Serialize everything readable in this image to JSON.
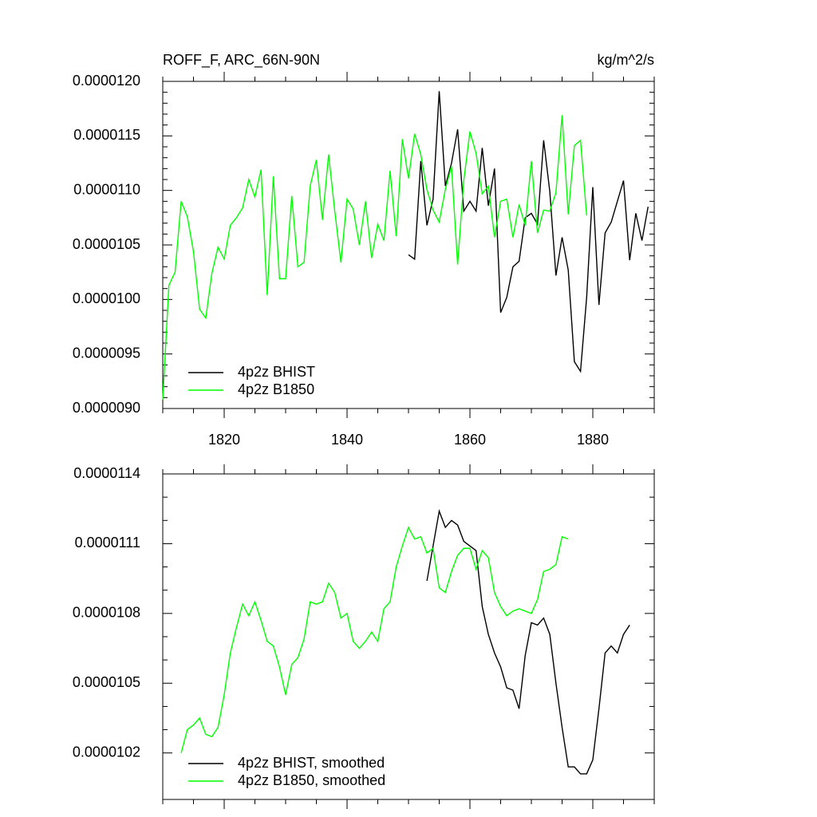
{
  "chart_data": [
    {
      "type": "line",
      "title": "ROFF_F, ARC_66N-90N",
      "units": "kg/m^2/s",
      "xlim": [
        1810,
        1890
      ],
      "xticks": [
        1820,
        1840,
        1860,
        1880
      ],
      "ylim": [
        9e-06,
        1.2e-05
      ],
      "yticks": [
        {
          "value": 1.2e-05,
          "label": "0.0000120"
        },
        {
          "value": 1.15e-05,
          "label": "0.0000115"
        },
        {
          "value": 1.1e-05,
          "label": "0.0000110"
        },
        {
          "value": 1.05e-05,
          "label": "0.0000105"
        },
        {
          "value": 1e-05,
          "label": "0.0000100"
        },
        {
          "value": 9.5e-06,
          "label": "0.0000095"
        },
        {
          "value": 9e-06,
          "label": "0.0000090"
        }
      ],
      "legend": "lower left",
      "series": [
        {
          "name": "4p2z BHIST",
          "color": "#000000",
          "x": [
            1850,
            1851,
            1852,
            1853,
            1854,
            1855,
            1856,
            1857,
            1858,
            1859,
            1860,
            1861,
            1862,
            1863,
            1864,
            1865,
            1866,
            1867,
            1868,
            1869,
            1870,
            1871,
            1872,
            1873,
            1874,
            1875,
            1876,
            1877,
            1878,
            1879,
            1880,
            1881,
            1882,
            1883,
            1884,
            1885,
            1886,
            1887,
            1888,
            1889
          ],
          "values": [
            1.041e-05,
            1.037e-05,
            1.127e-05,
            1.068e-05,
            1.092e-05,
            1.191e-05,
            1.104e-05,
            1.125e-05,
            1.156e-05,
            1.081e-05,
            1.09e-05,
            1.081e-05,
            1.139e-05,
            1.086e-05,
            1.12e-05,
            9.88e-06,
            1.002e-05,
            1.03e-05,
            1.035e-05,
            1.075e-05,
            1.079e-05,
            1.069e-05,
            1.146e-05,
            1.099e-05,
            1.022e-05,
            1.057e-05,
            1.027e-05,
            9.43e-06,
            9.34e-06,
            1.002e-05,
            1.103e-05,
            9.95e-06,
            1.061e-05,
            1.071e-05,
            1.09e-05,
            1.109e-05,
            1.036e-05,
            1.079e-05,
            1.054e-05,
            1.085e-05
          ]
        },
        {
          "name": "4p2z B1850",
          "color": "#00ff00",
          "x": [
            1810,
            1811,
            1812,
            1813,
            1814,
            1815,
            1816,
            1817,
            1818,
            1819,
            1820,
            1821,
            1822,
            1823,
            1824,
            1825,
            1826,
            1827,
            1828,
            1829,
            1830,
            1831,
            1832,
            1833,
            1834,
            1835,
            1836,
            1837,
            1838,
            1839,
            1840,
            1841,
            1842,
            1843,
            1844,
            1845,
            1846,
            1847,
            1848,
            1849,
            1850,
            1851,
            1852,
            1853,
            1854,
            1855,
            1856,
            1857,
            1858,
            1859,
            1860,
            1861,
            1862,
            1863,
            1864,
            1865,
            1866,
            1867,
            1868,
            1869,
            1870,
            1871,
            1872,
            1873,
            1874,
            1875,
            1876,
            1877,
            1878,
            1879
          ],
          "values": [
            9.08e-06,
            1.013e-05,
            1.025e-05,
            1.09e-05,
            1.076e-05,
            1.044e-05,
            9.91e-06,
            9.83e-06,
            1.024e-05,
            1.048e-05,
            1.037e-05,
            1.068e-05,
            1.075e-05,
            1.084e-05,
            1.11e-05,
            1.094e-05,
            1.119e-05,
            1.004e-05,
            1.113e-05,
            1.019e-05,
            1.019e-05,
            1.095e-05,
            1.03e-05,
            1.034e-05,
            1.104e-05,
            1.128e-05,
            1.073e-05,
            1.133e-05,
            1.081e-05,
            1.034e-05,
            1.092e-05,
            1.083e-05,
            1.05e-05,
            1.09e-05,
            1.038e-05,
            1.069e-05,
            1.054e-05,
            1.118e-05,
            1.058e-05,
            1.147e-05,
            1.111e-05,
            1.152e-05,
            1.133e-05,
            1.101e-05,
            1.082e-05,
            1.071e-05,
            1.101e-05,
            1.122e-05,
            1.032e-05,
            1.109e-05,
            1.154e-05,
            1.134e-05,
            1.097e-05,
            1.104e-05,
            1.057e-05,
            1.09e-05,
            1.092e-05,
            1.057e-05,
            1.087e-05,
            1.068e-05,
            1.127e-05,
            1.061e-05,
            1.082e-05,
            1.081e-05,
            1.098e-05,
            1.169e-05,
            1.078e-05,
            1.141e-05,
            1.146e-05,
            1.077e-05
          ]
        }
      ]
    },
    {
      "type": "line",
      "xlim": [
        1810,
        1890
      ],
      "xticks": [
        1820,
        1840,
        1860,
        1880
      ],
      "xtick_labels": false,
      "ylim": [
        1e-05,
        1.14e-05
      ],
      "yticks": [
        {
          "value": 1.14e-05,
          "label": "0.0000114"
        },
        {
          "value": 1.11e-05,
          "label": "0.0000111"
        },
        {
          "value": 1.08e-05,
          "label": "0.0000108"
        },
        {
          "value": 1.05e-05,
          "label": "0.0000105"
        },
        {
          "value": 1.02e-05,
          "label": "0.0000102"
        }
      ],
      "legend": "lower left",
      "series": [
        {
          "name": "4p2z BHIST, smoothed",
          "color": "#000000",
          "x": [
            1853,
            1854,
            1855,
            1856,
            1857,
            1858,
            1859,
            1860,
            1861,
            1862,
            1863,
            1864,
            1865,
            1866,
            1867,
            1868,
            1869,
            1870,
            1871,
            1872,
            1873,
            1874,
            1875,
            1876,
            1877,
            1878,
            1879,
            1880,
            1881,
            1882,
            1883,
            1884,
            1885,
            1886
          ],
          "values": [
            1.094e-05,
            1.109e-05,
            1.124e-05,
            1.117e-05,
            1.12e-05,
            1.118e-05,
            1.111e-05,
            1.109e-05,
            1.107e-05,
            1.083e-05,
            1.071e-05,
            1.063e-05,
            1.057e-05,
            1.048e-05,
            1.047e-05,
            1.039e-05,
            1.062e-05,
            1.076e-05,
            1.075e-05,
            1.078e-05,
            1.071e-05,
            1.05e-05,
            1.031e-05,
            1.014e-05,
            1.014e-05,
            1.011e-05,
            1.011e-05,
            1.017e-05,
            1.039e-05,
            1.063e-05,
            1.066e-05,
            1.063e-05,
            1.071e-05,
            1.075e-05
          ]
        },
        {
          "name": "4p2z B1850, smoothed",
          "color": "#00ff00",
          "x": [
            1813,
            1814,
            1815,
            1816,
            1817,
            1818,
            1819,
            1820,
            1821,
            1822,
            1823,
            1824,
            1825,
            1826,
            1827,
            1828,
            1829,
            1830,
            1831,
            1832,
            1833,
            1834,
            1835,
            1836,
            1837,
            1838,
            1839,
            1840,
            1841,
            1842,
            1843,
            1844,
            1845,
            1846,
            1847,
            1848,
            1849,
            1850,
            1851,
            1852,
            1853,
            1854,
            1855,
            1856,
            1857,
            1858,
            1859,
            1860,
            1861,
            1862,
            1863,
            1864,
            1865,
            1866,
            1867,
            1868,
            1869,
            1870,
            1871,
            1872,
            1873,
            1874,
            1875,
            1876
          ],
          "values": [
            1.02e-05,
            1.03e-05,
            1.032e-05,
            1.035e-05,
            1.028e-05,
            1.027e-05,
            1.031e-05,
            1.045e-05,
            1.063e-05,
            1.074e-05,
            1.084e-05,
            1.079e-05,
            1.085e-05,
            1.077e-05,
            1.068e-05,
            1.066e-05,
            1.057e-05,
            1.045e-05,
            1.058e-05,
            1.061e-05,
            1.069e-05,
            1.085e-05,
            1.084e-05,
            1.085e-05,
            1.093e-05,
            1.089e-05,
            1.078e-05,
            1.08e-05,
            1.068e-05,
            1.065e-05,
            1.068e-05,
            1.072e-05,
            1.068e-05,
            1.082e-05,
            1.085e-05,
            1.1e-05,
            1.109e-05,
            1.117e-05,
            1.112e-05,
            1.113e-05,
            1.106e-05,
            1.108e-05,
            1.091e-05,
            1.089e-05,
            1.098e-05,
            1.105e-05,
            1.108e-05,
            1.108e-05,
            1.099e-05,
            1.107e-05,
            1.104e-05,
            1.089e-05,
            1.083e-05,
            1.079e-05,
            1.081e-05,
            1.082e-05,
            1.081e-05,
            1.08e-05,
            1.086e-05,
            1.098e-05,
            1.099e-05,
            1.101e-05,
            1.113e-05,
            1.112e-05
          ]
        }
      ]
    }
  ]
}
